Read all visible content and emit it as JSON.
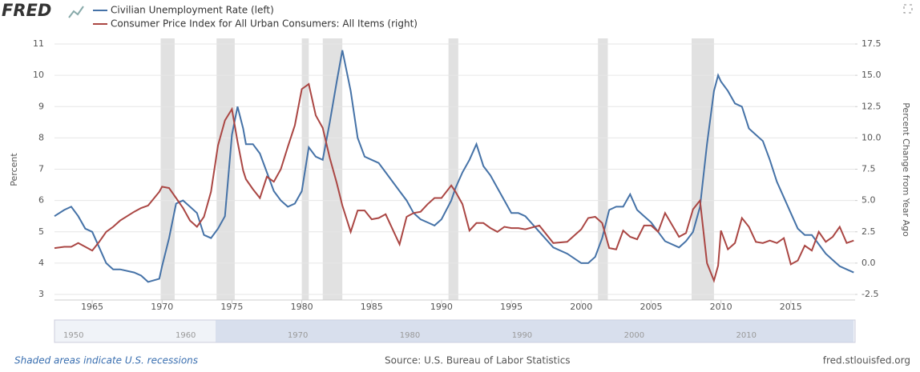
{
  "header": {
    "logo": "FRED"
  },
  "chart_data": {
    "type": "line",
    "x": [
      1962.3,
      1963,
      1963.5,
      1964,
      1964.5,
      1965,
      1965.5,
      1966,
      1966.5,
      1967,
      1968,
      1968.5,
      1969,
      1969.8,
      1970,
      1970.5,
      1971,
      1971.5,
      1972,
      1972.5,
      1973,
      1973.5,
      1974,
      1974.5,
      1975,
      1975.4,
      1975.8,
      1976,
      1976.5,
      1977,
      1977.5,
      1978,
      1978.5,
      1979,
      1979.5,
      1980,
      1980.5,
      1981,
      1981.5,
      1982,
      1982.5,
      1982.9,
      1983.5,
      1984,
      1984.5,
      1985,
      1985.5,
      1986,
      1987,
      1987.5,
      1988,
      1988.5,
      1989,
      1989.5,
      1990,
      1990.7,
      1991,
      1991.5,
      1992,
      1992.5,
      1993,
      1993.5,
      1994,
      1994.5,
      1995,
      1995.5,
      1996,
      1997,
      1998,
      1999,
      2000,
      2000.5,
      2001,
      2001.5,
      2002,
      2002.5,
      2003,
      2003.5,
      2004,
      2004.5,
      2005,
      2005.5,
      2006,
      2007,
      2007.5,
      2008,
      2008.5,
      2009,
      2009.5,
      2009.8,
      2010,
      2010.5,
      2011,
      2011.5,
      2012,
      2012.5,
      2013,
      2013.5,
      2014,
      2014.5,
      2015,
      2015.5,
      2016,
      2016.5,
      2017,
      2017.5,
      2018,
      2018.5,
      2019,
      2019.5
    ],
    "series": [
      {
        "name": "Civilian Unemployment Rate (left)",
        "color": "#4572a7",
        "axis": "y",
        "values": [
          5.5,
          5.7,
          5.8,
          5.5,
          5.1,
          5.0,
          4.5,
          4.0,
          3.8,
          3.8,
          3.7,
          3.6,
          3.4,
          3.5,
          3.9,
          4.8,
          5.9,
          6.0,
          5.8,
          5.6,
          4.9,
          4.8,
          5.1,
          5.5,
          8.1,
          9.0,
          8.3,
          7.8,
          7.8,
          7.5,
          6.9,
          6.3,
          6.0,
          5.8,
          5.9,
          6.3,
          7.7,
          7.4,
          7.3,
          8.5,
          9.8,
          10.8,
          9.5,
          8.0,
          7.4,
          7.3,
          7.2,
          6.9,
          6.3,
          6.0,
          5.6,
          5.4,
          5.3,
          5.2,
          5.4,
          6.0,
          6.4,
          6.9,
          7.3,
          7.8,
          7.1,
          6.8,
          6.4,
          6.0,
          5.6,
          5.6,
          5.5,
          5.0,
          4.5,
          4.3,
          4.0,
          4.0,
          4.2,
          4.8,
          5.7,
          5.8,
          5.8,
          6.2,
          5.7,
          5.5,
          5.3,
          5.0,
          4.7,
          4.5,
          4.7,
          5.0,
          5.8,
          7.8,
          9.5,
          10.0,
          9.8,
          9.5,
          9.1,
          9.0,
          8.3,
          8.1,
          7.9,
          7.3,
          6.6,
          6.1,
          5.6,
          5.1,
          4.9,
          4.9,
          4.6,
          4.3,
          4.1,
          3.9,
          3.8,
          3.7
        ]
      },
      {
        "name": "Consumer Price Index for All Urban Consumers: All Items (right)",
        "color": "#aa4643",
        "axis": "y2",
        "values": [
          1.2,
          1.3,
          1.3,
          1.6,
          1.3,
          1.0,
          1.7,
          2.5,
          2.9,
          3.4,
          4.1,
          4.4,
          4.6,
          5.7,
          6.1,
          6.0,
          5.2,
          4.4,
          3.4,
          2.9,
          3.7,
          5.7,
          9.4,
          11.4,
          12.3,
          9.7,
          7.4,
          6.7,
          5.9,
          5.2,
          6.9,
          6.5,
          7.5,
          9.3,
          11.0,
          13.9,
          14.3,
          11.8,
          10.8,
          8.4,
          6.4,
          4.6,
          2.5,
          4.2,
          4.2,
          3.5,
          3.6,
          3.9,
          1.5,
          3.7,
          4.0,
          4.1,
          4.7,
          5.2,
          5.2,
          6.2,
          5.7,
          4.7,
          2.6,
          3.2,
          3.2,
          2.8,
          2.5,
          2.9,
          2.8,
          2.8,
          2.7,
          3.0,
          1.6,
          1.7,
          2.7,
          3.6,
          3.7,
          3.2,
          1.2,
          1.1,
          2.6,
          2.1,
          1.9,
          3.0,
          3.0,
          2.5,
          4.0,
          2.1,
          2.4,
          4.3,
          5.0,
          0.0,
          -1.4,
          -0.2,
          2.6,
          1.1,
          1.6,
          3.6,
          2.9,
          1.7,
          1.6,
          1.8,
          1.6,
          2.0,
          -0.1,
          0.2,
          1.4,
          1.0,
          2.5,
          1.7,
          2.1,
          2.9,
          1.6,
          1.8
        ]
      }
    ],
    "xlim": [
      1962.3,
      2019.6
    ],
    "xticks": [
      1965,
      1970,
      1975,
      1980,
      1985,
      1990,
      1995,
      2000,
      2005,
      2010,
      2015
    ],
    "ylim": [
      3,
      11
    ],
    "yticks": [
      3,
      4,
      5,
      6,
      7,
      8,
      9,
      10,
      11
    ],
    "y2lim": [
      -2.5,
      17.5
    ],
    "y2ticks": [
      -2.5,
      {
        "value": 0,
        "label": "0.0"
      },
      2.5,
      {
        "value": 5,
        "label": "5.0"
      },
      7.5,
      {
        "value": 10,
        "label": "10.0"
      },
      12.5,
      {
        "value": 15,
        "label": "15.0"
      },
      17.5
    ],
    "ylabel": "Percent",
    "y2label": "Percent Change from Year Ago",
    "recessions": [
      [
        1969.9,
        1970.9
      ],
      [
        1973.9,
        1975.2
      ],
      [
        1980.0,
        1980.5
      ],
      [
        1981.5,
        1982.9
      ],
      [
        1990.5,
        1991.2
      ],
      [
        2001.2,
        2001.9
      ],
      [
        2007.9,
        2009.5
      ]
    ],
    "recession_color": "#e1e1e1",
    "grid": true,
    "navigator": {
      "xlim": [
        1948.3,
        2019.7
      ],
      "xticks": [
        1950,
        1960,
        1970,
        1980,
        1990,
        2000,
        2010
      ]
    }
  },
  "footer": {
    "note": "Shaded areas indicate U.S. recessions",
    "source": "Source: U.S. Bureau of Labor Statistics",
    "site": "fred.stlouisfed.org"
  }
}
